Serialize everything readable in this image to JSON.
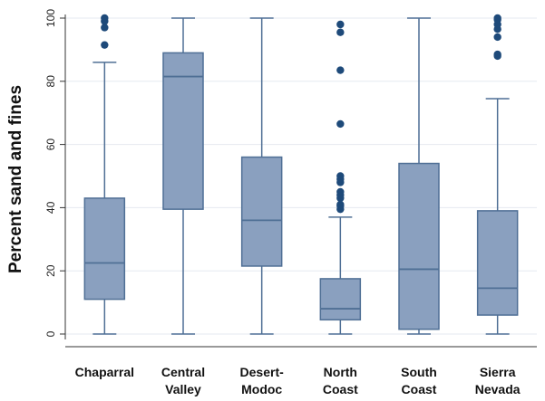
{
  "chart_data": {
    "type": "box",
    "ylabel": "Percent sand and fines",
    "ylim": [
      0,
      100
    ],
    "yticks": [
      0,
      20,
      40,
      60,
      80,
      100
    ],
    "grid": true,
    "categories": [
      [
        "Chaparral"
      ],
      [
        "Central",
        "Valley"
      ],
      [
        "Desert-",
        "Modoc"
      ],
      [
        "North",
        "Coast"
      ],
      [
        "South",
        "Coast"
      ],
      [
        "Sierra",
        "Nevada"
      ]
    ],
    "boxes": [
      {
        "whisker_low": 0,
        "q1": 11,
        "median": 22.5,
        "q3": 43,
        "whisker_high": 86,
        "outliers": [
          91.5,
          97,
          99,
          100
        ]
      },
      {
        "whisker_low": 0,
        "q1": 39.5,
        "median": 81.5,
        "q3": 89,
        "whisker_high": 100,
        "outliers": []
      },
      {
        "whisker_low": 0,
        "q1": 21.5,
        "median": 36,
        "q3": 56,
        "whisker_high": 100,
        "outliers": []
      },
      {
        "whisker_low": 0,
        "q1": 4.5,
        "median": 8,
        "q3": 17.5,
        "whisker_high": 37,
        "outliers": [
          39.5,
          40.5,
          41,
          43,
          44,
          45,
          48,
          49,
          50,
          66.5,
          83.5,
          95.5,
          98
        ]
      },
      {
        "whisker_low": 0,
        "q1": 1.5,
        "median": 20.5,
        "q3": 54,
        "whisker_high": 100,
        "outliers": []
      },
      {
        "whisker_low": 0,
        "q1": 6,
        "median": 14.5,
        "q3": 39,
        "whisker_high": 74.5,
        "outliers": [
          88,
          88.5,
          94,
          96.5,
          98,
          99.5,
          100
        ]
      }
    ],
    "colors": {
      "box_fill": "#8aa0bf",
      "box_stroke": "#4f6f95",
      "outlier": "#1e4a7a",
      "axis": "#333333",
      "grid": "#e6eaf0"
    }
  }
}
